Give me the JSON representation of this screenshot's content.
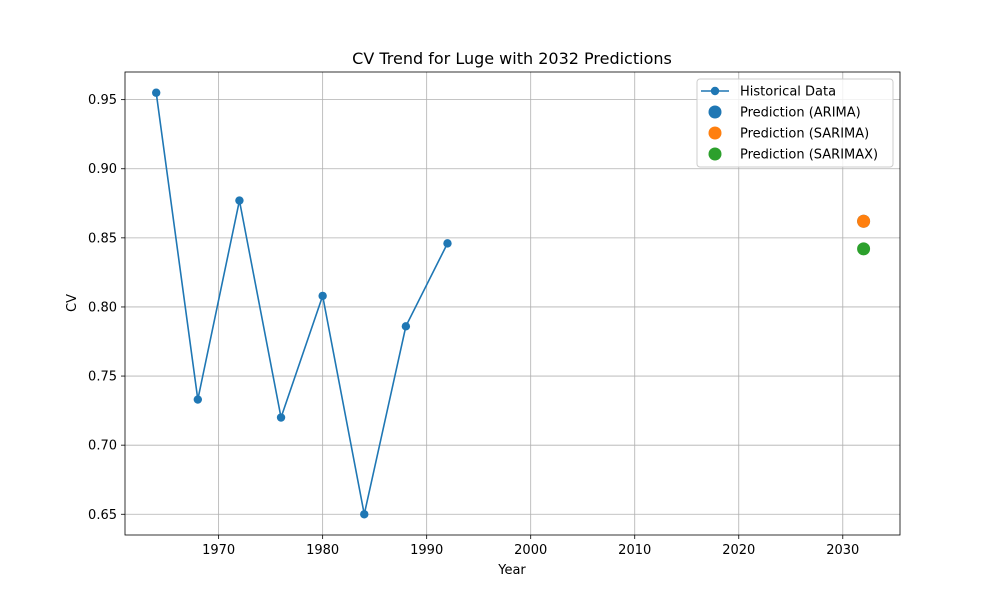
{
  "chart_data": {
    "type": "line",
    "title": "CV Trend for Luge with 2032 Predictions",
    "xlabel": "Year",
    "ylabel": "CV",
    "xlim": [
      1961,
      2035.5
    ],
    "ylim": [
      0.635,
      0.97
    ],
    "x_ticks": [
      1970,
      1980,
      1990,
      2000,
      2010,
      2020,
      2030
    ],
    "y_ticks": [
      "0.65",
      "0.70",
      "0.75",
      "0.80",
      "0.85",
      "0.90",
      "0.95"
    ],
    "grid": true,
    "legend_position": "top-right",
    "series": [
      {
        "name": "Historical Data",
        "kind": "line-marker",
        "color": "#1f77b4",
        "x": [
          1964,
          1968,
          1972,
          1976,
          1980,
          1984,
          1988,
          1992
        ],
        "y": [
          0.955,
          0.733,
          0.877,
          0.72,
          0.808,
          0.65,
          0.786,
          0.846
        ]
      },
      {
        "name": "Prediction (ARIMA)",
        "kind": "point",
        "color": "#1f77b4",
        "x": [
          2032
        ],
        "y": [
          0.862
        ]
      },
      {
        "name": "Prediction (SARIMA)",
        "kind": "point",
        "color": "#ff7f0e",
        "x": [
          2032
        ],
        "y": [
          0.862
        ]
      },
      {
        "name": "Prediction (SARIMAX)",
        "kind": "point",
        "color": "#2ca02c",
        "x": [
          2032
        ],
        "y": [
          0.842
        ]
      }
    ]
  }
}
